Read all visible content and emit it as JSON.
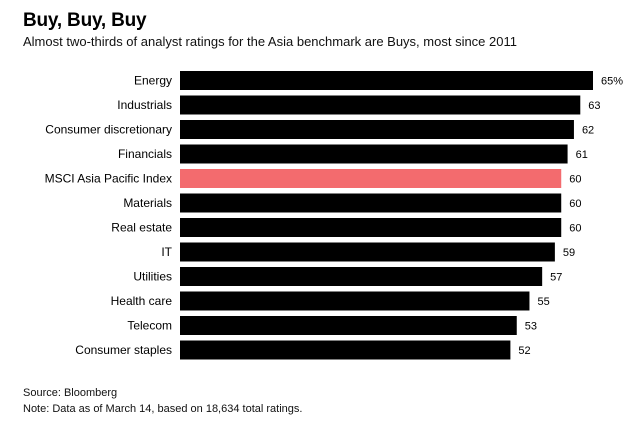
{
  "header": {
    "title": "Buy, Buy, Buy",
    "subtitle": "Almost two-thirds of analyst ratings for the Asia benchmark are Buys, most since 2011"
  },
  "chart_data": {
    "type": "bar",
    "orientation": "horizontal",
    "categories": [
      "Energy",
      "Industrials",
      "Consumer discretionary",
      "Financials",
      "MSCI Asia Pacific Index",
      "Materials",
      "Real estate",
      "IT",
      "Utilities",
      "Health care",
      "Telecom",
      "Consumer staples"
    ],
    "values": [
      65,
      63,
      62,
      61,
      60,
      60,
      60,
      59,
      57,
      55,
      53,
      52
    ],
    "value_labels": [
      "65%",
      "63",
      "62",
      "61",
      "60",
      "60",
      "60",
      "59",
      "57",
      "55",
      "53",
      "52"
    ],
    "highlight_category": "MSCI Asia Pacific Index",
    "colors": {
      "bar": "#000000",
      "highlight": "#f36b6e"
    },
    "xlim": [
      0,
      65
    ],
    "grid": false,
    "legend": "none"
  },
  "footer": {
    "source": "Source: Bloomberg",
    "note": "Note: Data as of March 14, based on 18,634 total ratings."
  }
}
